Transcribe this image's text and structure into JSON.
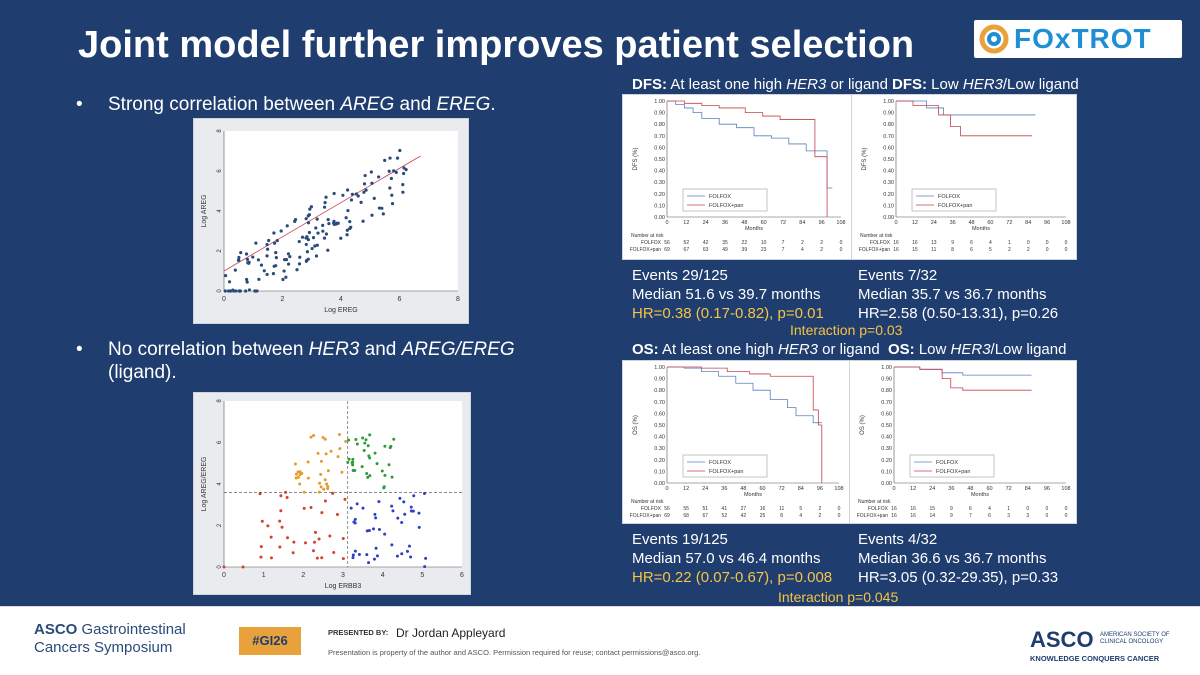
{
  "title": "Joint model further improves patient selection",
  "logo": {
    "text": "FOxTROT"
  },
  "bullets": [
    {
      "pre": "Strong correlation between ",
      "g1": "AREG",
      "mid": " and ",
      "g2": "EREG",
      "post": "."
    },
    {
      "pre": "No correlation between ",
      "g1": "HER3",
      "mid": " and ",
      "g2": "AREG/EREG",
      "post": " (ligand)."
    }
  ],
  "scatter1": {
    "ylabel": "Log AREG",
    "xlabel": "Log EREG",
    "xticks": [
      "0",
      "2",
      "4",
      "6",
      "8"
    ],
    "yticks": [
      "0",
      "2",
      "4",
      "6",
      "8"
    ]
  },
  "scatter2": {
    "ylabel": "Log AREG/EREG",
    "xlabel": "Log ERBB3",
    "xticks": [
      "0",
      "1",
      "2",
      "3",
      "4",
      "5",
      "6"
    ],
    "yticks": [
      "0",
      "2",
      "4",
      "6",
      "8"
    ]
  },
  "km": {
    "xticks": [
      "0",
      "12",
      "24",
      "36",
      "48",
      "60",
      "72",
      "84",
      "96",
      "108"
    ],
    "yticks": [
      "0.00",
      "0.10",
      "0.20",
      "0.30",
      "0.40",
      "0.50",
      "0.60",
      "0.70",
      "0.80",
      "0.90",
      "1.00"
    ],
    "xlabel": "Months",
    "legend": [
      "FOLFOX",
      "FOLFOX+pan"
    ],
    "risk_label": "Number at risk",
    "colors": {
      "folfox": "#5b7fbf",
      "pan": "#c9414d"
    }
  },
  "dfs_high": {
    "hdr_bold": "DFS:",
    "hdr_pre": " At least one high ",
    "hdr_italic": "HER3",
    "hdr_post": " or ligand",
    "ylabel": "DFS (%)",
    "risk": [
      {
        "name": "FOLFOX",
        "values": [
          "56",
          "52",
          "42",
          "35",
          "22",
          "10",
          "7",
          "2",
          "2",
          "0"
        ]
      },
      {
        "name": "FOLFOX+pan",
        "values": [
          "69",
          "67",
          "63",
          "49",
          "39",
          "23",
          "7",
          "4",
          "2",
          "0"
        ]
      }
    ],
    "events": "Events 29/125",
    "median": "Median 51.6 vs 39.7 months",
    "hr": "HR=0.38 (0.17-0.82), p=0.01"
  },
  "dfs_low": {
    "hdr_bold": "DFS:",
    "hdr_pre": " Low ",
    "hdr_italic": "HER3",
    "hdr_post": "/Low ligand",
    "ylabel": "DFS (%)",
    "risk": [
      {
        "name": "FOLFOX",
        "values": [
          "16",
          "16",
          "13",
          "9",
          "6",
          "4",
          "1",
          "0",
          "0",
          "0"
        ]
      },
      {
        "name": "FOLFOX+pan",
        "values": [
          "16",
          "15",
          "11",
          "8",
          "6",
          "5",
          "2",
          "2",
          "0",
          "0"
        ]
      }
    ],
    "events": "Events 7/32",
    "median": "Median 35.7 vs 36.7 months",
    "hr": "HR=2.58 (0.50-13.31), p=0.26"
  },
  "dfs_interaction": "Interaction p=0.03",
  "os_high": {
    "hdr_bold": "OS:",
    "hdr_pre": " At least one high ",
    "hdr_italic": "HER3",
    "hdr_post": " or ligand",
    "ylabel": "OS (%)",
    "risk": [
      {
        "name": "FOLFOX",
        "values": [
          "56",
          "55",
          "51",
          "41",
          "27",
          "16",
          "11",
          "5",
          "2",
          "0"
        ]
      },
      {
        "name": "FOLFOX+pan",
        "values": [
          "69",
          "68",
          "67",
          "52",
          "42",
          "25",
          "8",
          "4",
          "2",
          "0"
        ]
      }
    ],
    "events": "Events 19/125",
    "median": "Median 57.0 vs 46.4 months",
    "hr": "HR=0.22 (0.07-0.67), p=0.008"
  },
  "os_low": {
    "hdr_bold": "OS:",
    "hdr_pre": " Low ",
    "hdr_italic": "HER3",
    "hdr_post": "/Low ligand",
    "ylabel": "OS (%)",
    "risk": [
      {
        "name": "FOLFOX",
        "values": [
          "16",
          "16",
          "15",
          "9",
          "6",
          "4",
          "1",
          "0",
          "0",
          "0"
        ]
      },
      {
        "name": "FOLFOX+pan",
        "values": [
          "16",
          "16",
          "14",
          "9",
          "7",
          "6",
          "3",
          "3",
          "0",
          "0"
        ]
      }
    ],
    "events": "Events 4/32",
    "median": "Median 36.6 vs 36.7 months",
    "hr": "HR=3.05 (0.32-29.35), p=0.33"
  },
  "os_interaction": "Interaction p=0.045",
  "footer": {
    "asco": "ASCO",
    "gi1": " Gastrointestinal",
    "gi2": "Cancers Symposium",
    "hashtag": "#GI26",
    "presented_by": "PRESENTED BY:",
    "presenter": "Dr Jordan Appleyard",
    "disclaimer": "Presentation is property of the author and ASCO. Permission required for reuse; contact permissions@asco.org.",
    "asco_right": "ASCO",
    "asco_society": "AMERICAN SOCIETY OF CLINICAL ONCOLOGY",
    "asco_tag": "KNOWLEDGE CONQUERS CANCER"
  }
}
